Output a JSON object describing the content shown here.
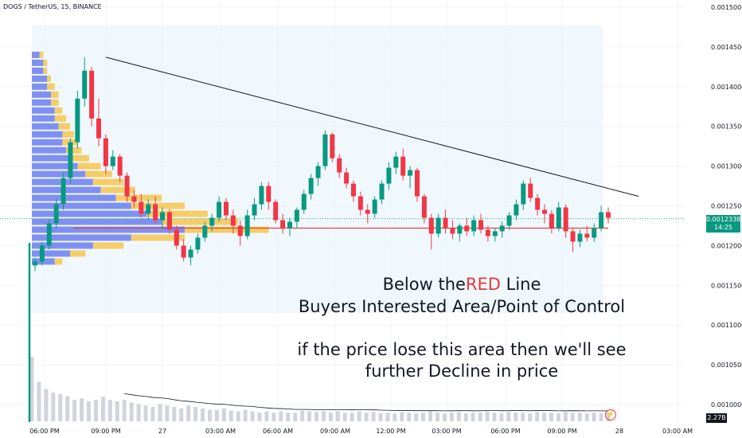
{
  "symbol": {
    "title": "DOGS / TetherUS, 15, BINANCE"
  },
  "annotation": {
    "line1_before": "Below the",
    "line1_red": "RED",
    "line1_after": " Line",
    "line2": "Buyers Interested Area/Point of Control",
    "line3": "if the price lose this area then we'll see",
    "line4": "further Decline in price"
  },
  "last_price": {
    "value": "0.0012338",
    "countdown": "14:25"
  },
  "volume_badge": {
    "value": "2.27B"
  },
  "colors": {
    "up": "#089981",
    "down": "#f23645",
    "poc_line": "#e53935",
    "trendline": "#131722",
    "box": "#e3f2fd"
  },
  "chart_data": {
    "type": "candlestick",
    "y_ticks": [
      "0.0015000",
      "0.0014500",
      "0.0014000",
      "0.0013500",
      "0.0013000",
      "0.0012500",
      "0.0012000",
      "0.0011500",
      "0.0011000",
      "0.0010500",
      "0.0010000"
    ],
    "x_ticks": [
      "06:00 PM",
      "09:00 PM",
      "27",
      "03:00 AM",
      "06:00 AM",
      "09:00 AM",
      "12:00 PM",
      "03:00 PM",
      "06:00 PM",
      "09:00 PM",
      "28",
      "03:00 AM"
    ],
    "poc_price": 0.001222,
    "current_price": 0.0012338,
    "trendline": {
      "start": 0.001437,
      "end": 0.001262
    },
    "ohlc": [
      [
        0.001175,
        0.001185,
        0.001168,
        0.00118
      ],
      [
        0.00118,
        0.001205,
        0.001175,
        0.0012
      ],
      [
        0.0012,
        0.001232,
        0.001195,
        0.001228
      ],
      [
        0.001228,
        0.001258,
        0.001222,
        0.001252
      ],
      [
        0.001252,
        0.001292,
        0.001245,
        0.001285
      ],
      [
        0.001285,
        0.001335,
        0.001278,
        0.00133
      ],
      [
        0.00133,
        0.001395,
        0.001322,
        0.001385
      ],
      [
        0.001385,
        0.001437,
        0.001375,
        0.00142
      ],
      [
        0.00142,
        0.001425,
        0.00135,
        0.00136
      ],
      [
        0.00136,
        0.001385,
        0.001325,
        0.001335
      ],
      [
        0.001335,
        0.00134,
        0.00129,
        0.0013
      ],
      [
        0.0013,
        0.00132,
        0.001295,
        0.001312
      ],
      [
        0.001312,
        0.001315,
        0.00128,
        0.001288
      ],
      [
        0.001288,
        0.001292,
        0.001255,
        0.001262
      ],
      [
        0.001262,
        0.00127,
        0.001248,
        0.001255
      ],
      [
        0.001255,
        0.001265,
        0.001235,
        0.00124
      ],
      [
        0.00124,
        0.001258,
        0.001232,
        0.001252
      ],
      [
        0.001252,
        0.001262,
        0.001228,
        0.001232
      ],
      [
        0.001232,
        0.001248,
        0.001222,
        0.001242
      ],
      [
        0.001242,
        0.001246,
        0.001215,
        0.00122
      ],
      [
        0.00122,
        0.001225,
        0.001195,
        0.0012
      ],
      [
        0.0012,
        0.001208,
        0.00118,
        0.001185
      ],
      [
        0.001185,
        0.0012,
        0.001175,
        0.001195
      ],
      [
        0.001195,
        0.001215,
        0.00119,
        0.00121
      ],
      [
        0.00121,
        0.00123,
        0.001205,
        0.001225
      ],
      [
        0.001225,
        0.00124,
        0.001218,
        0.001235
      ],
      [
        0.001235,
        0.001262,
        0.00123,
        0.001255
      ],
      [
        0.001255,
        0.00126,
        0.001232,
        0.001238
      ],
      [
        0.001238,
        0.001245,
        0.001215,
        0.001225
      ],
      [
        0.001225,
        0.001232,
        0.0012,
        0.001212
      ],
      [
        0.001212,
        0.001245,
        0.001208,
        0.001238
      ],
      [
        0.001238,
        0.00126,
        0.001232,
        0.001252
      ],
      [
        0.001252,
        0.00128,
        0.001245,
        0.001275
      ],
      [
        0.001275,
        0.00128,
        0.001245,
        0.001255
      ],
      [
        0.001255,
        0.001258,
        0.001228,
        0.001232
      ],
      [
        0.001232,
        0.00124,
        0.001215,
        0.001222
      ],
      [
        0.001222,
        0.001235,
        0.001212,
        0.00123
      ],
      [
        0.00123,
        0.001248,
        0.001222,
        0.001245
      ],
      [
        0.001245,
        0.00127,
        0.00124,
        0.001265
      ],
      [
        0.001265,
        0.00129,
        0.001258,
        0.001285
      ],
      [
        0.001285,
        0.001305,
        0.001275,
        0.0013
      ],
      [
        0.0013,
        0.001345,
        0.001295,
        0.00134
      ],
      [
        0.00134,
        0.001342,
        0.001305,
        0.00131
      ],
      [
        0.00131,
        0.001315,
        0.001285,
        0.001292
      ],
      [
        0.001292,
        0.001298,
        0.001272,
        0.001278
      ],
      [
        0.001278,
        0.001282,
        0.001255,
        0.001262
      ],
      [
        0.001262,
        0.001268,
        0.001238,
        0.001245
      ],
      [
        0.001245,
        0.001252,
        0.001228,
        0.00124
      ],
      [
        0.00124,
        0.001262,
        0.001235,
        0.001258
      ],
      [
        0.001258,
        0.001282,
        0.001252,
        0.001278
      ],
      [
        0.001278,
        0.001305,
        0.00127,
        0.001298
      ],
      [
        0.001298,
        0.001318,
        0.00129,
        0.001312
      ],
      [
        0.001312,
        0.001322,
        0.001282,
        0.001288
      ],
      [
        0.001288,
        0.0013,
        0.001272,
        0.001295
      ],
      [
        0.001295,
        0.001298,
        0.001255,
        0.001262
      ],
      [
        0.001262,
        0.001265,
        0.001228,
        0.001235
      ],
      [
        0.001235,
        0.00124,
        0.001195,
        0.001215
      ],
      [
        0.001215,
        0.00124,
        0.00121,
        0.001235
      ],
      [
        0.001235,
        0.001245,
        0.001215,
        0.001222
      ],
      [
        0.001222,
        0.001232,
        0.001208,
        0.001215
      ],
      [
        0.001215,
        0.001228,
        0.001205,
        0.001225
      ],
      [
        0.001225,
        0.001235,
        0.001212,
        0.001218
      ],
      [
        0.001218,
        0.001238,
        0.001212,
        0.001232
      ],
      [
        0.001232,
        0.00124,
        0.001215,
        0.00122
      ],
      [
        0.00122,
        0.001225,
        0.001205,
        0.001212
      ],
      [
        0.001212,
        0.001222,
        0.001205,
        0.001218
      ],
      [
        0.001218,
        0.00123,
        0.00121,
        0.001225
      ],
      [
        0.001225,
        0.001242,
        0.00122,
        0.001238
      ],
      [
        0.001238,
        0.001258,
        0.001232,
        0.001252
      ],
      [
        0.001252,
        0.001282,
        0.001245,
        0.001278
      ],
      [
        0.001278,
        0.001285,
        0.001255,
        0.00126
      ],
      [
        0.00126,
        0.001265,
        0.001238,
        0.001245
      ],
      [
        0.001245,
        0.001252,
        0.001228,
        0.00124
      ],
      [
        0.00124,
        0.001245,
        0.001215,
        0.001222
      ],
      [
        0.001222,
        0.001255,
        0.001218,
        0.001248
      ],
      [
        0.001248,
        0.001252,
        0.00121,
        0.001218
      ],
      [
        0.001218,
        0.001222,
        0.001192,
        0.001205
      ],
      [
        0.001205,
        0.00122,
        0.001198,
        0.001215
      ],
      [
        0.001215,
        0.001225,
        0.001205,
        0.00121
      ],
      [
        0.00121,
        0.001228,
        0.001205,
        0.001222
      ],
      [
        0.001222,
        0.00125,
        0.001218,
        0.001242
      ],
      [
        0.001242,
        0.001248,
        0.001228,
        0.001235
      ]
    ],
    "volume": [
      90,
      55,
      45,
      40,
      38,
      35,
      30,
      32,
      28,
      30,
      34,
      30,
      28,
      30,
      26,
      24,
      22,
      20,
      24,
      22,
      20,
      18,
      22,
      20,
      18,
      16,
      16,
      18,
      15,
      14,
      16,
      14,
      12,
      14,
      12,
      14,
      12,
      12,
      15,
      14,
      13,
      14,
      12,
      14,
      12,
      12,
      14,
      12,
      13,
      11,
      12,
      11,
      13,
      12,
      11,
      12,
      14,
      12,
      11,
      12,
      13,
      11,
      12,
      12,
      14,
      12,
      11,
      13,
      12,
      12,
      11,
      13,
      12,
      12,
      11,
      13,
      12,
      12,
      11,
      12,
      11,
      12
    ],
    "volume_profile": [
      [
        0.00118,
        6,
        2
      ],
      [
        0.00119,
        10,
        4
      ],
      [
        0.0012,
        16,
        8
      ],
      [
        0.00121,
        26,
        14
      ],
      [
        0.00122,
        40,
        22
      ],
      [
        0.00123,
        34,
        20
      ],
      [
        0.00124,
        30,
        16
      ],
      [
        0.00125,
        26,
        14
      ],
      [
        0.00126,
        22,
        12
      ],
      [
        0.00127,
        18,
        9
      ],
      [
        0.00128,
        16,
        8
      ],
      [
        0.00129,
        14,
        7
      ],
      [
        0.0013,
        12,
        6
      ],
      [
        0.00131,
        10,
        5
      ],
      [
        0.00132,
        9,
        4
      ],
      [
        0.00133,
        8,
        4
      ],
      [
        0.00134,
        8,
        3
      ],
      [
        0.00135,
        7,
        3
      ],
      [
        0.00136,
        6,
        3
      ],
      [
        0.00137,
        6,
        2
      ],
      [
        0.00138,
        5,
        2
      ],
      [
        0.00139,
        5,
        2
      ],
      [
        0.0014,
        4,
        2
      ],
      [
        0.00141,
        4,
        1
      ],
      [
        0.00142,
        3,
        1
      ],
      [
        0.00143,
        3,
        1
      ],
      [
        0.00144,
        2,
        1
      ]
    ]
  }
}
